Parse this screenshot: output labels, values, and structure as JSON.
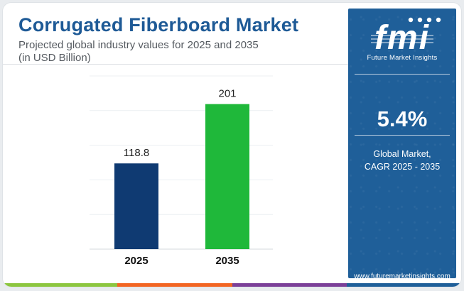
{
  "header": {
    "title": "Corrugated Fiberboard Market",
    "subtitle_line1": "Projected global industry values for 2025 and 2035",
    "subtitle_line2": "(in USD Billion)"
  },
  "chart_data": {
    "type": "bar",
    "categories": [
      "2025",
      "2035"
    ],
    "values": [
      118.8,
      201
    ],
    "data_labels": [
      "118.8",
      "201"
    ],
    "bar_colors": [
      "#0f3a72",
      "#1fb83a"
    ],
    "ylim": [
      0,
      240
    ],
    "grid": true,
    "title": "",
    "xlabel": "",
    "ylabel": ""
  },
  "sidebar": {
    "logo_text": "fmi",
    "logo_caption": "Future Market Insights",
    "cagr_value": "5.4%",
    "cagr_label_line1": "Global Market,",
    "cagr_label_line2": "CAGR 2025 - 2035",
    "url": "www.futuremarketinsights.com",
    "background_color": "#1f5f99"
  },
  "footer": {
    "stripe_colors": [
      "#8cc63f",
      "#f26522",
      "#7b3f98",
      "#1f5f99"
    ]
  },
  "theme": {
    "title_color": "#1e5a96"
  }
}
